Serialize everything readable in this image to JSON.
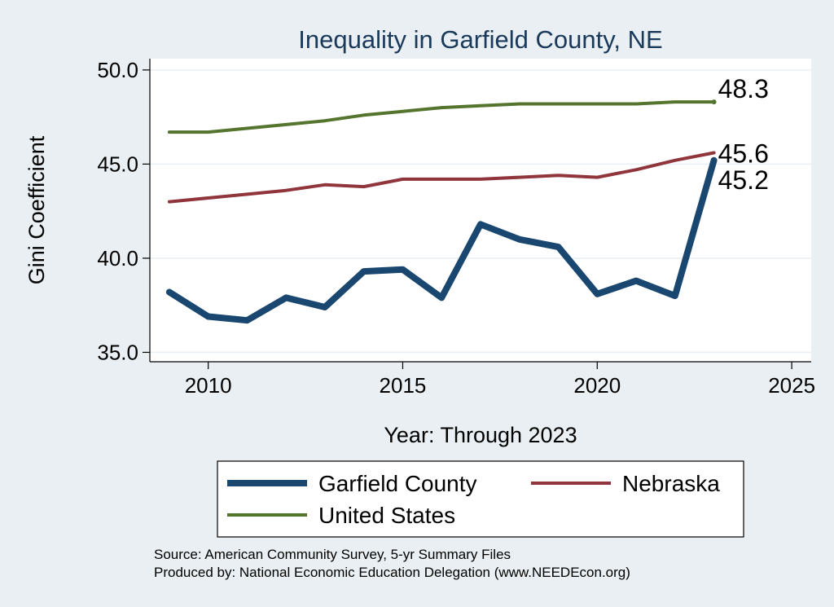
{
  "chart_data": {
    "type": "line",
    "title": "Inequality in Garfield County, NE",
    "xlabel": "Year: Through 2023",
    "ylabel": "Gini Coefficient",
    "xlim": [
      2008.5,
      2025.5
    ],
    "ylim": [
      34.5,
      50.6
    ],
    "x_ticks": [
      2010,
      2015,
      2020,
      2025
    ],
    "y_ticks": [
      35.0,
      40.0,
      45.0,
      50.0
    ],
    "x_tick_labels": [
      "2010",
      "2015",
      "2020",
      "2025"
    ],
    "y_tick_labels": [
      "35.0",
      "40.0",
      "45.0",
      "50.0"
    ],
    "x": [
      2009,
      2010,
      2011,
      2012,
      2013,
      2014,
      2015,
      2016,
      2017,
      2018,
      2019,
      2020,
      2021,
      2022,
      2023
    ],
    "series": [
      {
        "name": "Garfield County",
        "color": "#1a476f",
        "values": [
          38.2,
          36.9,
          36.7,
          37.9,
          37.4,
          39.3,
          39.4,
          37.9,
          41.8,
          41.0,
          40.6,
          38.1,
          38.8,
          38.0,
          45.2
        ],
        "end_label": "45.2"
      },
      {
        "name": "Nebraska",
        "color": "#90353b",
        "values": [
          43.0,
          43.2,
          43.4,
          43.6,
          43.9,
          43.8,
          44.2,
          44.2,
          44.2,
          44.3,
          44.4,
          44.3,
          44.7,
          45.2,
          45.6
        ],
        "end_label": "45.6"
      },
      {
        "name": "United States",
        "color": "#55752f",
        "values": [
          46.7,
          46.7,
          46.9,
          47.1,
          47.3,
          47.6,
          47.8,
          48.0,
          48.1,
          48.2,
          48.2,
          48.2,
          48.2,
          48.3,
          48.3
        ],
        "end_label": "48.3"
      }
    ],
    "legend": {
      "entries": [
        "Garfield County",
        "Nebraska",
        "United States"
      ],
      "placement": "bottom"
    }
  },
  "notes": {
    "source": "Source: American Community Survey, 5-yr Summary Files",
    "produced_by": "Produced by: National Economic Education Delegation (www.NEEDEcon.org)"
  }
}
